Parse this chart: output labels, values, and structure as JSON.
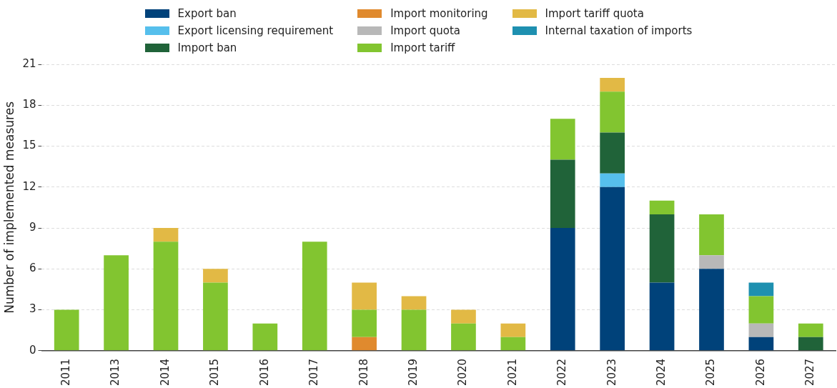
{
  "chart_data": {
    "type": "bar",
    "stacked": true,
    "ylabel": "Number of implemented measures",
    "categories": [
      "2011",
      "2013",
      "2014",
      "2015",
      "2016",
      "2017",
      "2018",
      "2019",
      "2020",
      "2021",
      "2022",
      "2023",
      "2024",
      "2025",
      "2026",
      "2027"
    ],
    "ylim": [
      0,
      21
    ],
    "yticks": [
      0,
      3,
      6,
      9,
      12,
      15,
      18,
      21
    ],
    "grid": "y",
    "legend": "top",
    "series": [
      {
        "name": "Export ban",
        "color": "#00427a",
        "values": [
          null,
          null,
          null,
          null,
          null,
          null,
          null,
          null,
          null,
          null,
          9,
          12,
          5,
          6,
          1,
          null
        ]
      },
      {
        "name": "Export licensing requirement",
        "color": "#56bfec",
        "values": [
          null,
          null,
          null,
          null,
          null,
          null,
          null,
          null,
          null,
          null,
          null,
          1,
          null,
          null,
          null,
          null
        ]
      },
      {
        "name": "Import ban",
        "color": "#206339",
        "values": [
          null,
          null,
          null,
          null,
          null,
          null,
          null,
          null,
          null,
          null,
          5,
          3,
          5,
          null,
          null,
          1
        ]
      },
      {
        "name": "Import monitoring",
        "color": "#e08a2e",
        "values": [
          null,
          null,
          null,
          null,
          null,
          null,
          1,
          null,
          null,
          null,
          null,
          null,
          null,
          null,
          null,
          null
        ]
      },
      {
        "name": "Import quota",
        "color": "#b8b8b8",
        "values": [
          null,
          null,
          null,
          null,
          null,
          null,
          null,
          null,
          null,
          null,
          null,
          null,
          null,
          1,
          1,
          null
        ]
      },
      {
        "name": "Import tariff",
        "color": "#82c530",
        "values": [
          3,
          7,
          8,
          5,
          2,
          8,
          2,
          3,
          2,
          1,
          3,
          3,
          1,
          3,
          2,
          1
        ]
      },
      {
        "name": "Import tariff quota",
        "color": "#e2b945",
        "values": [
          null,
          null,
          1,
          1,
          null,
          null,
          2,
          1,
          1,
          1,
          null,
          1,
          null,
          null,
          null,
          null
        ]
      },
      {
        "name": "Internal taxation of imports",
        "color": "#1e90b0",
        "values": [
          null,
          null,
          null,
          null,
          null,
          null,
          null,
          null,
          null,
          null,
          null,
          null,
          null,
          null,
          1,
          null
        ]
      }
    ]
  }
}
